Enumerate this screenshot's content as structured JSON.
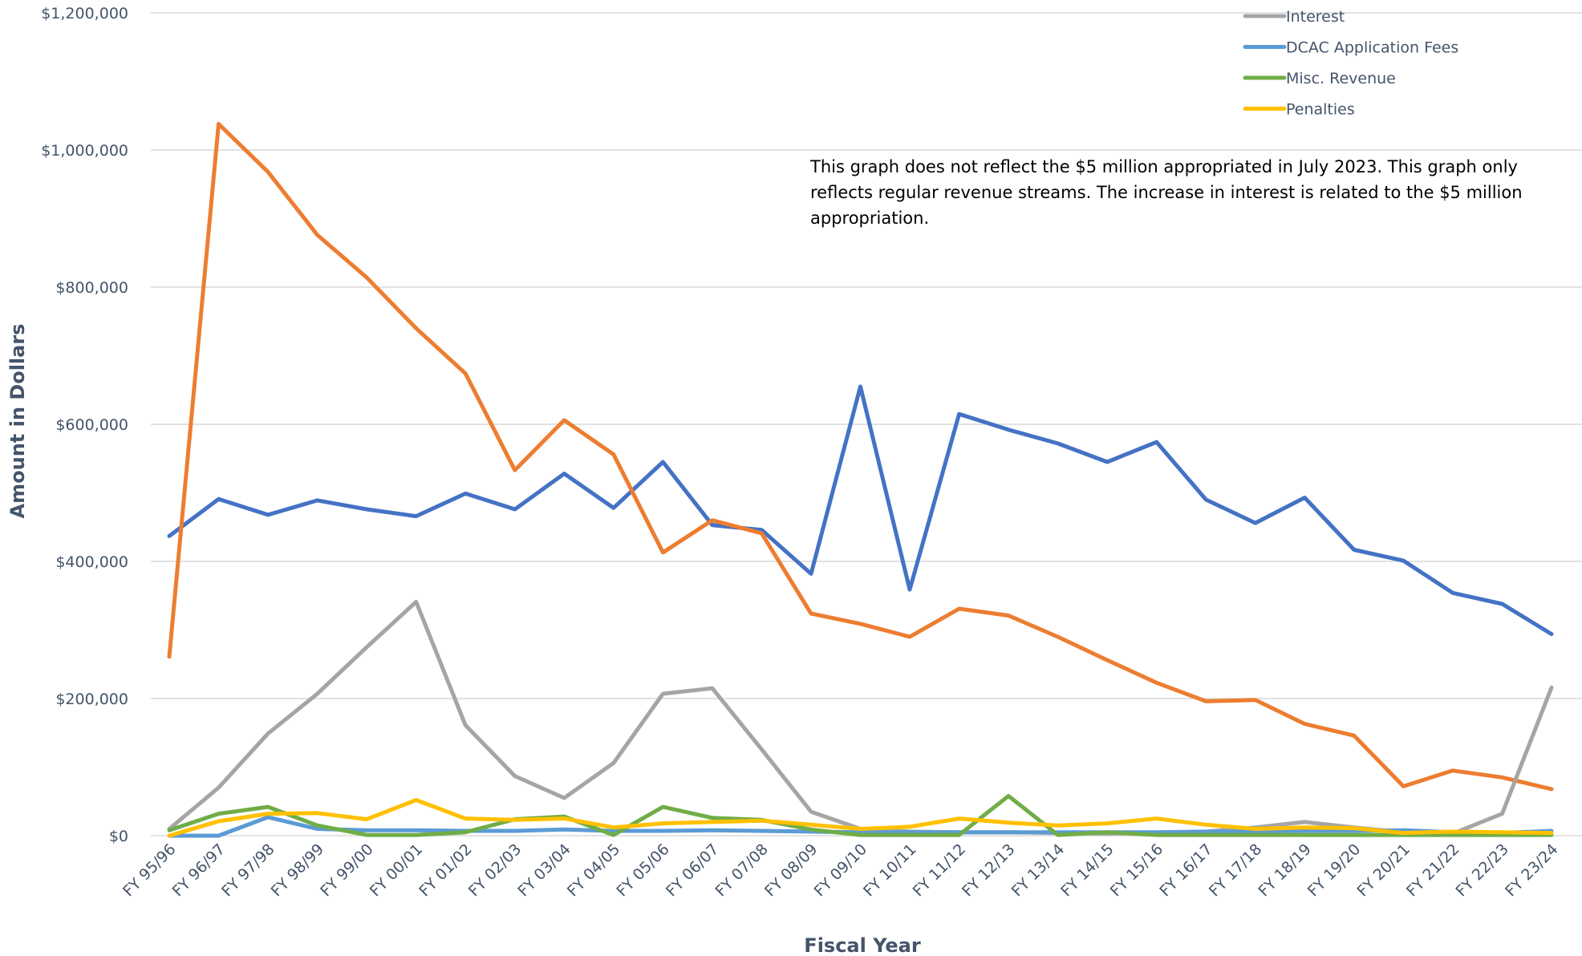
{
  "chart_data": {
    "type": "line",
    "title": "",
    "xlabel": "Fiscal Year",
    "ylabel": "Amount in Dollars",
    "ylim": [
      0,
      1200000
    ],
    "y_ticks": [
      0,
      200000,
      400000,
      600000,
      800000,
      1000000,
      1200000
    ],
    "y_tick_labels": [
      "$0",
      "$200,000",
      "$400,000",
      "$600,000",
      "$800,000",
      "$1,000,000",
      "$1,200,000"
    ],
    "grid": "horizontal",
    "legend_position": "top-right",
    "annotation": "This graph does not reflect the $5 million appropriated in July 2023. This graph only reflects regular revenue streams. The increase in interest is related to the $5 million appropriation.",
    "categories": [
      "FY 95/96",
      "FY 96/97",
      "FY 97/98",
      "FY 98/99",
      "FY 99/00",
      "FY 00/01",
      "FY 01/02",
      "FY 02/03",
      "FY 03/04",
      "FY 04/05",
      "FY 05/06",
      "FY 06/07",
      "FY 07/08",
      "FY 08/09",
      "FY 09/10",
      "FY 10/11",
      "FY 11/12",
      "FY 12/13",
      "FY 13/14",
      "FY 14/15",
      "FY 15/16",
      "FY 16/17",
      "FY 17/18",
      "FY 18/19",
      "FY 19/20",
      "FY 20/21",
      "FY 21/22",
      "FY 22/23",
      "FY 23/24"
    ],
    "series": [
      {
        "name": "",
        "color": "#4472c4",
        "in_legend": false,
        "values": [
          437000,
          491000,
          468000,
          489000,
          476000,
          466000,
          499000,
          476000,
          528000,
          478000,
          545000,
          453000,
          446000,
          382000,
          655000,
          359000,
          615000,
          592000,
          572000,
          545000,
          574000,
          490000,
          456000,
          493000,
          417000,
          401000,
          354000,
          338000,
          294000
        ]
      },
      {
        "name": "",
        "color": "#ed7d31",
        "in_legend": false,
        "values": [
          261000,
          1038000,
          968000,
          876000,
          814000,
          740000,
          674000,
          533000,
          606000,
          556000,
          413000,
          460000,
          441000,
          324000,
          309000,
          290000,
          331000,
          321000,
          290000,
          256000,
          223000,
          196000,
          198000,
          163000,
          146000,
          72000,
          95000,
          85000,
          68000
        ]
      },
      {
        "name": "Interest",
        "color": "#a5a5a5",
        "in_legend": true,
        "values": [
          10000,
          70000,
          149000,
          207000,
          275000,
          341000,
          161000,
          87000,
          55000,
          106000,
          207000,
          215000,
          126000,
          35000,
          10000,
          6000,
          5000,
          5000,
          4000,
          3000,
          4000,
          6000,
          12000,
          20000,
          12000,
          5000,
          3000,
          32000,
          216000
        ]
      },
      {
        "name": "DCAC Application Fees",
        "color": "#5b9bd5",
        "in_legend": true,
        "values": [
          0,
          0,
          27000,
          10000,
          8000,
          8000,
          7000,
          7000,
          9000,
          7000,
          7000,
          8000,
          7000,
          6000,
          5000,
          5000,
          5000,
          5000,
          5000,
          5000,
          5000,
          6000,
          6000,
          7000,
          7000,
          8000,
          5000,
          4000,
          7000
        ]
      },
      {
        "name": "Misc. Revenue",
        "color": "#70ad47",
        "in_legend": true,
        "values": [
          8000,
          32000,
          42000,
          15000,
          1000,
          1000,
          5000,
          24000,
          28000,
          1000,
          42000,
          26000,
          23000,
          9000,
          1000,
          1000,
          1000,
          58000,
          1000,
          5000,
          1000,
          1000,
          1000,
          1000,
          1000,
          1000,
          1000,
          1000,
          1000
        ]
      },
      {
        "name": "Penalties",
        "color": "#ffc000",
        "in_legend": true,
        "values": [
          0,
          21000,
          32000,
          33000,
          24000,
          52000,
          25000,
          23000,
          25000,
          12000,
          18000,
          20000,
          22000,
          16000,
          10000,
          13000,
          25000,
          19000,
          15000,
          18000,
          25000,
          16000,
          10000,
          12000,
          11000,
          4000,
          6000,
          5000,
          4000
        ]
      }
    ]
  }
}
